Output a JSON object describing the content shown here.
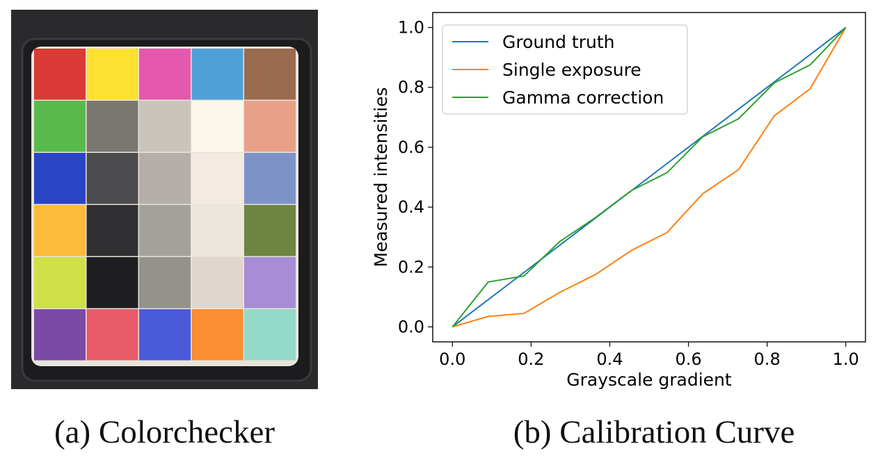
{
  "captions": {
    "a": "(a) Colorchecker",
    "b": "(b) Calibration Curve"
  },
  "colorchecker": {
    "background": "#2a2a2c",
    "frame": "#1c1c1e",
    "patches": [
      [
        "#d93a35",
        "#fde032",
        "#e459ae",
        "#4fa0d8",
        "#9a6a4e"
      ],
      [
        "#58ba4b",
        "#7b7873",
        "#cbc4bc",
        "#fbf8ea",
        "#e9a088"
      ],
      [
        "#2a44c6",
        "#4b4b4d",
        "#b4afab",
        "#f3eae1",
        "#7d93c8"
      ],
      [
        "#fcbb3a",
        "#303032",
        "#a5a19c",
        "#ede6de",
        "#6d8541"
      ],
      [
        "#cde046",
        "#1e1e20",
        "#95918d",
        "#dfd6ce",
        "#a78cd6"
      ],
      [
        "#7b4aa5",
        "#e95a6a",
        "#4a5ad8",
        "#fb8d33",
        "#93dac8"
      ]
    ]
  },
  "chart_data": {
    "type": "line",
    "xlabel": "Grayscale gradient",
    "ylabel": "Measured intensities",
    "xlim": [
      -0.05,
      1.05
    ],
    "ylim": [
      -0.05,
      1.05
    ],
    "xticks": [
      0.0,
      0.2,
      0.4,
      0.6,
      0.8,
      1.0
    ],
    "yticks": [
      0.0,
      0.2,
      0.4,
      0.6,
      0.8,
      1.0
    ],
    "tick_labels": [
      "0.0",
      "0.2",
      "0.4",
      "0.6",
      "0.8",
      "1.0"
    ],
    "legend_position": "top-left",
    "grid": false,
    "x": [
      0.0,
      0.0909,
      0.1818,
      0.2727,
      0.3636,
      0.4545,
      0.5455,
      0.6364,
      0.7273,
      0.8182,
      0.9091,
      1.0
    ],
    "series": [
      {
        "name": "Ground truth",
        "color": "#1f77b4",
        "values": [
          0.0,
          0.0909,
          0.1818,
          0.2727,
          0.3636,
          0.4545,
          0.5455,
          0.6364,
          0.7273,
          0.8182,
          0.9091,
          1.0
        ]
      },
      {
        "name": "Single exposure",
        "color": "#ff7f0e",
        "values": [
          0.0,
          0.035,
          0.045,
          0.115,
          0.175,
          0.255,
          0.315,
          0.445,
          0.525,
          0.705,
          0.795,
          1.0
        ]
      },
      {
        "name": "Gamma correction",
        "color": "#2ca02c",
        "values": [
          0.0,
          0.15,
          0.17,
          0.285,
          0.365,
          0.455,
          0.515,
          0.635,
          0.695,
          0.815,
          0.875,
          1.0
        ]
      }
    ]
  }
}
